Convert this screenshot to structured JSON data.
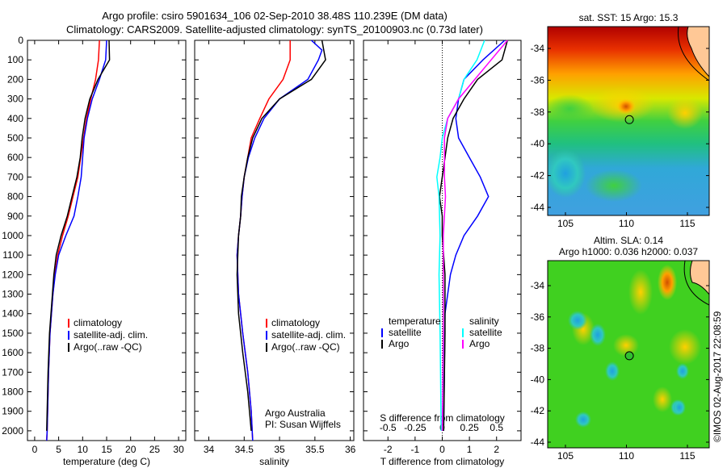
{
  "title_line1": "Argo profile: csiro 5901634_106 02-Sep-2010 38.48S 110.239E (DM data)",
  "title_line2": "Climatology: CARS2009. Satellite-adjusted climatology: synTS_20100903.nc (0.73d later)",
  "colors": {
    "climatology": "#ff0000",
    "satellite": "#0000ff",
    "argo": "#000000",
    "sal_satellite": "#00ffff",
    "sal_argo": "#ff00ff"
  },
  "chart_data": [
    {
      "type": "line",
      "xlabel": "temperature (deg C)",
      "ylabel": "",
      "xlim": [
        -1.5,
        31.5
      ],
      "ylim": [
        2050,
        0
      ],
      "xticks": [
        "0",
        "5",
        "10",
        "15",
        "20",
        "25",
        "30"
      ],
      "xtick_values": [
        0,
        5,
        10,
        15,
        20,
        25,
        30
      ],
      "yticks": [
        "0",
        "100",
        "200",
        "300",
        "400",
        "500",
        "600",
        "700",
        "800",
        "900",
        "1000",
        "1100",
        "1200",
        "1300",
        "1400",
        "1500",
        "1600",
        "1700",
        "1800",
        "1900",
        "2000"
      ],
      "legend": [
        "climatology",
        "satellite-adj. clim.",
        "Argo(..raw -QC)"
      ],
      "series": [
        {
          "name": "climatology",
          "color": "#ff0000",
          "points": [
            [
              0,
              13.5
            ],
            [
              100,
              13.3
            ],
            [
              200,
              12.7
            ],
            [
              300,
              11.7
            ],
            [
              400,
              10.8
            ],
            [
              500,
              10.2
            ],
            [
              600,
              9.6
            ],
            [
              700,
              9.0
            ],
            [
              800,
              8.0
            ],
            [
              900,
              7.0
            ],
            [
              1000,
              5.8
            ],
            [
              1100,
              4.8
            ],
            [
              1200,
              4.2
            ],
            [
              1300,
              3.8
            ],
            [
              1400,
              3.5
            ],
            [
              1500,
              3.2
            ],
            [
              1700,
              2.9
            ],
            [
              2000,
              2.6
            ],
            [
              2050,
              2.5
            ]
          ]
        },
        {
          "name": "satellite-adj. clim.",
          "color": "#0000ff",
          "points": [
            [
              0,
              15.0
            ],
            [
              100,
              14.8
            ],
            [
              200,
              13.5
            ],
            [
              300,
              12.0
            ],
            [
              400,
              11.0
            ],
            [
              500,
              10.3
            ],
            [
              600,
              10.0
            ],
            [
              700,
              9.7
            ],
            [
              800,
              9.0
            ],
            [
              900,
              8.2
            ],
            [
              1000,
              6.5
            ],
            [
              1100,
              5.0
            ],
            [
              1200,
              4.3
            ],
            [
              1300,
              3.8
            ],
            [
              1400,
              3.5
            ],
            [
              1500,
              3.2
            ],
            [
              1700,
              2.9
            ],
            [
              2000,
              2.6
            ],
            [
              2050,
              2.5
            ]
          ]
        },
        {
          "name": "Argo(..raw -QC)",
          "color": "#000000",
          "points": [
            [
              0,
              15.5
            ],
            [
              100,
              15.6
            ],
            [
              200,
              13.2
            ],
            [
              300,
              11.5
            ],
            [
              400,
              10.5
            ],
            [
              500,
              9.9
            ],
            [
              600,
              9.5
            ],
            [
              700,
              8.8
            ],
            [
              800,
              7.8
            ],
            [
              900,
              6.8
            ],
            [
              1000,
              5.5
            ],
            [
              1100,
              4.5
            ],
            [
              1200,
              4.0
            ],
            [
              1300,
              3.7
            ],
            [
              1400,
              3.4
            ],
            [
              1500,
              3.1
            ],
            [
              1700,
              2.8
            ],
            [
              2000,
              2.5
            ]
          ]
        }
      ]
    },
    {
      "type": "line",
      "xlabel": "salinity",
      "xlim": [
        33.8,
        36.05
      ],
      "ylim": [
        2050,
        0
      ],
      "xticks": [
        "34",
        "34.5",
        "35",
        "35.5",
        "36"
      ],
      "xtick_values": [
        34,
        34.5,
        35,
        35.5,
        36
      ],
      "legend": [
        "climatology",
        "satellite-adj. clim.",
        "Argo(..raw -QC)"
      ],
      "annotation": [
        "Argo Australia",
        "PI: Susan Wijffels"
      ],
      "series": [
        {
          "name": "climatology",
          "color": "#ff0000",
          "points": [
            [
              0,
              35.15
            ],
            [
              100,
              35.15
            ],
            [
              200,
              35.05
            ],
            [
              300,
              34.85
            ],
            [
              400,
              34.72
            ],
            [
              500,
              34.6
            ],
            [
              600,
              34.55
            ],
            [
              700,
              34.5
            ],
            [
              800,
              34.47
            ],
            [
              900,
              34.45
            ],
            [
              1000,
              34.42
            ],
            [
              1100,
              34.4
            ],
            [
              1300,
              34.42
            ],
            [
              1500,
              34.48
            ],
            [
              1700,
              34.55
            ],
            [
              1900,
              34.6
            ],
            [
              2050,
              34.62
            ]
          ]
        },
        {
          "name": "satellite-adj. clim.",
          "color": "#0000ff",
          "points": [
            [
              0,
              35.45
            ],
            [
              50,
              35.6
            ],
            [
              100,
              35.55
            ],
            [
              200,
              35.4
            ],
            [
              300,
              35.0
            ],
            [
              400,
              34.78
            ],
            [
              500,
              34.65
            ],
            [
              600,
              34.56
            ],
            [
              700,
              34.5
            ],
            [
              800,
              34.47
            ],
            [
              900,
              34.45
            ],
            [
              1000,
              34.42
            ],
            [
              1100,
              34.4
            ],
            [
              1300,
              34.42
            ],
            [
              1500,
              34.48
            ],
            [
              1700,
              34.55
            ],
            [
              1900,
              34.6
            ],
            [
              2050,
              34.62
            ]
          ]
        },
        {
          "name": "Argo(..raw -QC)",
          "color": "#000000",
          "points": [
            [
              0,
              35.6
            ],
            [
              100,
              35.65
            ],
            [
              200,
              35.45
            ],
            [
              300,
              35.0
            ],
            [
              400,
              34.75
            ],
            [
              500,
              34.62
            ],
            [
              600,
              34.55
            ],
            [
              700,
              34.5
            ],
            [
              800,
              34.46
            ],
            [
              900,
              34.45
            ],
            [
              1000,
              34.42
            ],
            [
              1200,
              34.4
            ],
            [
              1400,
              34.42
            ],
            [
              1600,
              34.48
            ],
            [
              1800,
              34.55
            ],
            [
              2000,
              34.6
            ]
          ]
        }
      ]
    },
    {
      "type": "line",
      "xlabel": "T difference from climatology",
      "x2label": "S difference from climatology",
      "xlim": [
        -2.9,
        2.9
      ],
      "ylim": [
        2050,
        0
      ],
      "xticks": [
        "-2",
        "-1",
        "0",
        "1",
        "2"
      ],
      "xtick_values": [
        -2,
        -1,
        0,
        1,
        2
      ],
      "x2ticks": [
        "-0.5",
        "-0.25",
        "0",
        "0.25",
        "0.5"
      ],
      "x2tick_values": [
        -0.5,
        -0.25,
        0,
        0.25,
        0.5
      ],
      "legend": {
        "temperature": "temperature",
        "salinity": "salinity",
        "satellite": "satellite",
        "argo": "Argo"
      },
      "series": [
        {
          "name": "temperature satellite",
          "axis": "T",
          "color": "#0000ff",
          "points": [
            [
              0,
              2.3
            ],
            [
              100,
              1.5
            ],
            [
              200,
              0.8
            ],
            [
              300,
              0.6
            ],
            [
              400,
              0.5
            ],
            [
              500,
              0.6
            ],
            [
              600,
              1.0
            ],
            [
              700,
              1.4
            ],
            [
              800,
              1.7
            ],
            [
              900,
              1.3
            ],
            [
              1000,
              0.8
            ],
            [
              1100,
              0.5
            ],
            [
              1200,
              0.3
            ],
            [
              1400,
              0.1
            ],
            [
              2000,
              0.05
            ]
          ]
        },
        {
          "name": "temperature Argo",
          "axis": "T",
          "color": "#000000",
          "points": [
            [
              0,
              2.4
            ],
            [
              100,
              2.2
            ],
            [
              200,
              1.3
            ],
            [
              300,
              0.8
            ],
            [
              400,
              0.4
            ],
            [
              500,
              0.2
            ],
            [
              600,
              0.1
            ],
            [
              700,
              0.0
            ],
            [
              800,
              -0.1
            ],
            [
              900,
              0.0
            ],
            [
              1000,
              0.0
            ],
            [
              1200,
              0.1
            ],
            [
              1500,
              0.1
            ],
            [
              2000,
              0.05
            ]
          ]
        },
        {
          "name": "salinity satellite",
          "axis": "S",
          "color": "#00ffff",
          "points": [
            [
              0,
              0.39
            ],
            [
              100,
              0.32
            ],
            [
              200,
              0.2
            ],
            [
              300,
              0.15
            ],
            [
              400,
              0.05
            ],
            [
              500,
              0.0
            ],
            [
              600,
              -0.02
            ],
            [
              700,
              -0.05
            ],
            [
              800,
              -0.03
            ],
            [
              1000,
              -0.02
            ],
            [
              1200,
              -0.03
            ],
            [
              1500,
              -0.02
            ],
            [
              2000,
              -0.01
            ]
          ]
        },
        {
          "name": "salinity Argo",
          "axis": "S",
          "color": "#ff00ff",
          "points": [
            [
              0,
              0.6
            ],
            [
              100,
              0.45
            ],
            [
              200,
              0.3
            ],
            [
              300,
              0.15
            ],
            [
              400,
              0.05
            ],
            [
              500,
              0.02
            ],
            [
              700,
              0.02
            ],
            [
              800,
              0.03
            ],
            [
              1000,
              0.01
            ],
            [
              1500,
              0.01
            ],
            [
              2000,
              0.0
            ]
          ]
        }
      ]
    }
  ],
  "maps": {
    "sst_title": "sat. SST: 15 Argo: 15.3",
    "sla_title1": "Altim. SLA: 0.14",
    "sla_title2": "Argo h1000: 0.036 h2000: 0.037",
    "lat_ticks": [
      "-34",
      "-36",
      "-38",
      "-40",
      "-42",
      "-44"
    ],
    "lon_ticks": [
      "105",
      "110",
      "115"
    ],
    "argo_lon": 110.239,
    "argo_lat": -38.48
  },
  "credit": "©IMOS 02-Aug-2017 22:08:59"
}
